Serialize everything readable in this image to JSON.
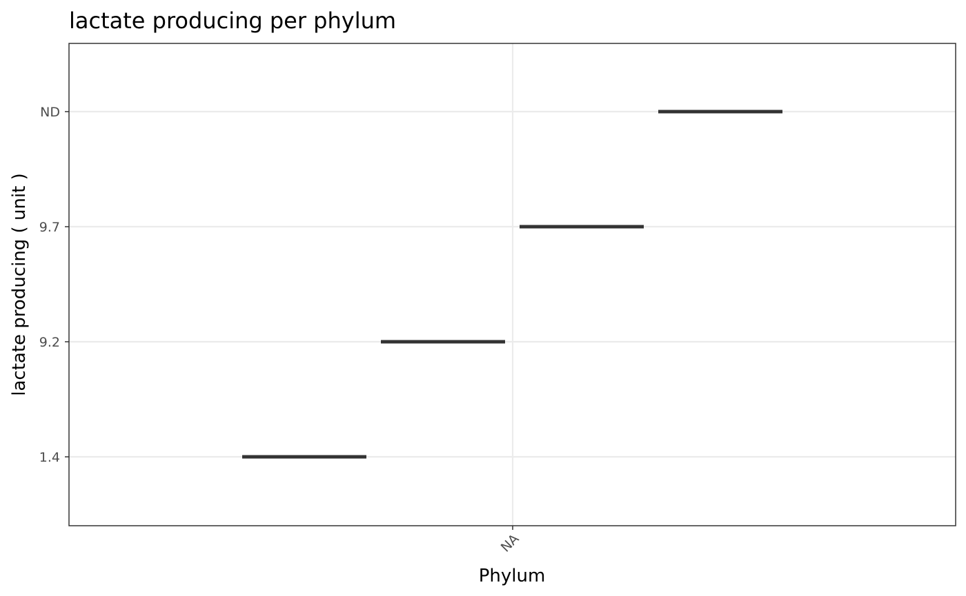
{
  "chart_data": {
    "type": "line",
    "title": "lactate producing per phylum",
    "xlabel": "Phylum",
    "ylabel": "lactate producing ( unit )",
    "categories": [
      "NA"
    ],
    "y_categories": [
      "1.4",
      "9.2",
      "9.7",
      "ND"
    ],
    "segments": [
      {
        "x": "NA",
        "y": "1.4"
      },
      {
        "x": "NA",
        "y": "9.2"
      },
      {
        "x": "NA",
        "y": "9.7"
      },
      {
        "x": "NA",
        "y": "ND"
      }
    ],
    "grid": true,
    "legend": "none"
  }
}
